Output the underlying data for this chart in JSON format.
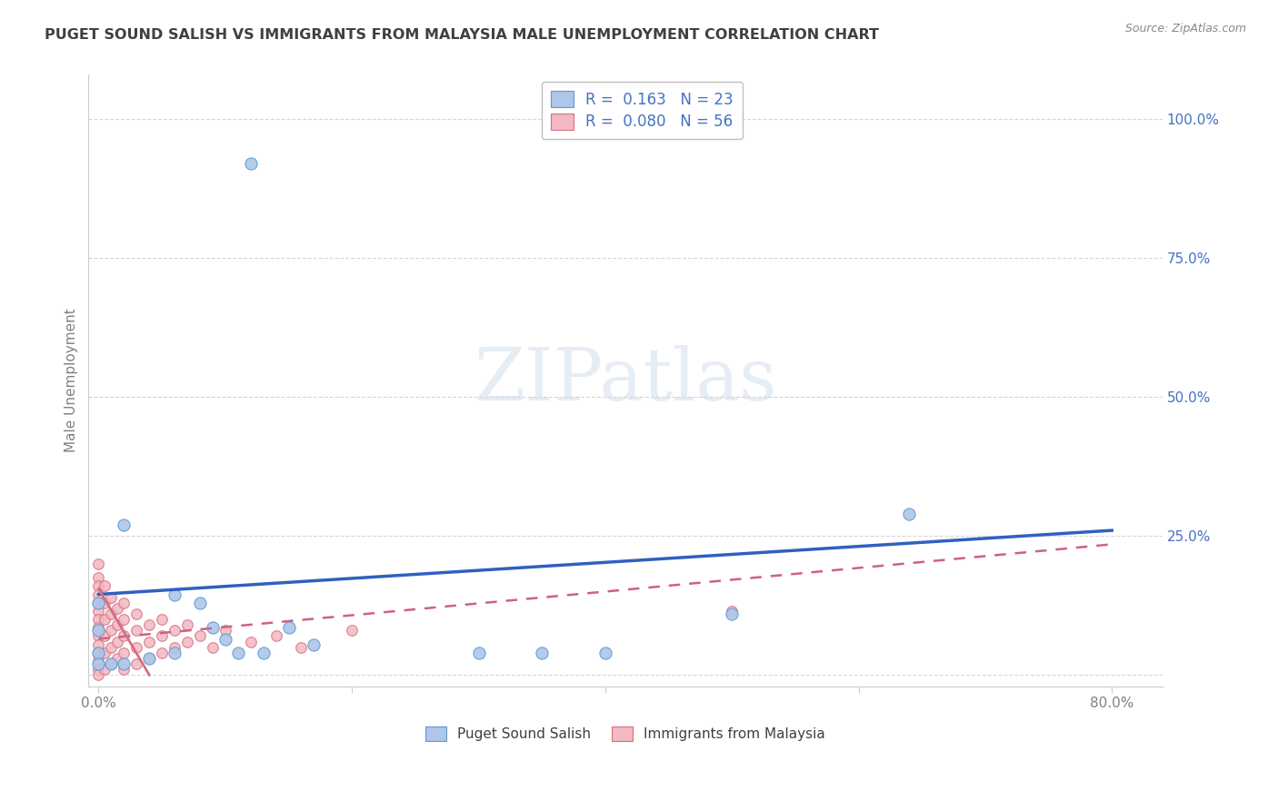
{
  "title": "PUGET SOUND SALISH VS IMMIGRANTS FROM MALAYSIA MALE UNEMPLOYMENT CORRELATION CHART",
  "source": "Source: ZipAtlas.com",
  "ylabel": "Male Unemployment",
  "series1_name": "Puget Sound Salish",
  "series2_name": "Immigrants from Malaysia",
  "series1_color": "#aec6e8",
  "series1_edge": "#5b9bd5",
  "series2_color": "#f4b8c1",
  "series2_edge": "#d47080",
  "series1_line_color": "#3060c0",
  "series2_line_color": "#d06080",
  "series1_R": 0.163,
  "series1_N": 23,
  "series2_R": 0.08,
  "series2_N": 56,
  "watermark_text": "ZIPatlas",
  "background_color": "#ffffff",
  "grid_color": "#cccccc",
  "title_color": "#404040",
  "source_color": "#888888",
  "xlim": [
    -0.008,
    0.84
  ],
  "ylim": [
    -0.02,
    1.08
  ],
  "x_ticks": [
    0.0,
    0.2,
    0.4,
    0.6,
    0.8
  ],
  "x_tick_labels": [
    "0.0%",
    "",
    "",
    "",
    "80.0%"
  ],
  "y_ticks_right": [
    0.0,
    0.25,
    0.5,
    0.75,
    1.0
  ],
  "y_tick_labels_right": [
    "",
    "25.0%",
    "50.0%",
    "75.0%",
    "100.0%"
  ],
  "series1_scatter": [
    [
      0.12,
      0.92
    ],
    [
      0.02,
      0.27
    ],
    [
      0.0,
      0.13
    ],
    [
      0.0,
      0.08
    ],
    [
      0.0,
      0.04
    ],
    [
      0.0,
      0.02
    ],
    [
      0.01,
      0.02
    ],
    [
      0.02,
      0.02
    ],
    [
      0.04,
      0.03
    ],
    [
      0.06,
      0.04
    ],
    [
      0.06,
      0.145
    ],
    [
      0.08,
      0.13
    ],
    [
      0.09,
      0.085
    ],
    [
      0.1,
      0.065
    ],
    [
      0.11,
      0.04
    ],
    [
      0.13,
      0.04
    ],
    [
      0.15,
      0.085
    ],
    [
      0.17,
      0.055
    ],
    [
      0.3,
      0.04
    ],
    [
      0.35,
      0.04
    ],
    [
      0.4,
      0.04
    ],
    [
      0.5,
      0.11
    ],
    [
      0.64,
      0.29
    ]
  ],
  "series2_scatter": [
    [
      0.0,
      0.2
    ],
    [
      0.0,
      0.175
    ],
    [
      0.0,
      0.16
    ],
    [
      0.0,
      0.145
    ],
    [
      0.0,
      0.13
    ],
    [
      0.0,
      0.115
    ],
    [
      0.0,
      0.1
    ],
    [
      0.0,
      0.085
    ],
    [
      0.0,
      0.07
    ],
    [
      0.0,
      0.055
    ],
    [
      0.0,
      0.04
    ],
    [
      0.0,
      0.025
    ],
    [
      0.0,
      0.01
    ],
    [
      0.0,
      0.0
    ],
    [
      0.005,
      0.16
    ],
    [
      0.005,
      0.13
    ],
    [
      0.005,
      0.1
    ],
    [
      0.005,
      0.07
    ],
    [
      0.005,
      0.04
    ],
    [
      0.005,
      0.01
    ],
    [
      0.01,
      0.14
    ],
    [
      0.01,
      0.11
    ],
    [
      0.01,
      0.08
    ],
    [
      0.01,
      0.05
    ],
    [
      0.01,
      0.02
    ],
    [
      0.015,
      0.12
    ],
    [
      0.015,
      0.09
    ],
    [
      0.015,
      0.06
    ],
    [
      0.015,
      0.03
    ],
    [
      0.02,
      0.13
    ],
    [
      0.02,
      0.1
    ],
    [
      0.02,
      0.07
    ],
    [
      0.02,
      0.04
    ],
    [
      0.02,
      0.01
    ],
    [
      0.03,
      0.11
    ],
    [
      0.03,
      0.08
    ],
    [
      0.03,
      0.05
    ],
    [
      0.03,
      0.02
    ],
    [
      0.04,
      0.09
    ],
    [
      0.04,
      0.06
    ],
    [
      0.04,
      0.03
    ],
    [
      0.05,
      0.1
    ],
    [
      0.05,
      0.07
    ],
    [
      0.05,
      0.04
    ],
    [
      0.06,
      0.08
    ],
    [
      0.06,
      0.05
    ],
    [
      0.07,
      0.09
    ],
    [
      0.07,
      0.06
    ],
    [
      0.08,
      0.07
    ],
    [
      0.09,
      0.05
    ],
    [
      0.1,
      0.08
    ],
    [
      0.12,
      0.06
    ],
    [
      0.14,
      0.07
    ],
    [
      0.16,
      0.05
    ],
    [
      0.2,
      0.08
    ],
    [
      0.5,
      0.115
    ]
  ],
  "trend1_x": [
    0.0,
    0.8
  ],
  "trend1_y": [
    0.145,
    0.26
  ],
  "trend2_x": [
    0.0,
    0.8
  ],
  "trend2_y": [
    0.065,
    0.235
  ]
}
